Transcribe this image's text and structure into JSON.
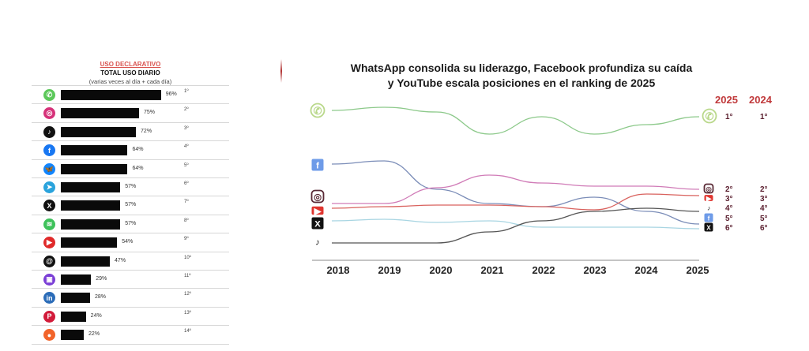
{
  "left_table": {
    "header_tag": "USO DECLARATIVO",
    "title": "TOTAL USO DIARIO",
    "subtitle": "(varias veces al día + cada día)",
    "rows": [
      {
        "platform": "WhatsApp",
        "icon": "whatsapp-icon",
        "color": "#5cc85a",
        "glyph": "✆",
        "value": 96,
        "label": "96%",
        "rank": "1º"
      },
      {
        "platform": "Instagram",
        "icon": "instagram-icon",
        "color": "#d6327a",
        "glyph": "◎",
        "value": 75,
        "label": "75%",
        "rank": "2º"
      },
      {
        "platform": "TikTok",
        "icon": "tiktok-icon",
        "color": "#111111",
        "glyph": "♪",
        "value": 72,
        "label": "72%",
        "rank": "3º"
      },
      {
        "platform": "Facebook",
        "icon": "facebook-icon",
        "color": "#1877f2",
        "glyph": "f",
        "value": 64,
        "label": "64%",
        "rank": "4º"
      },
      {
        "platform": "Bluesky",
        "icon": "bluesky-icon",
        "color": "#1185fe",
        "glyph": "🦋",
        "value": 64,
        "label": "64%",
        "rank": "5º"
      },
      {
        "platform": "Telegram",
        "icon": "telegram-icon",
        "color": "#2aa3dc",
        "glyph": "➤",
        "value": 57,
        "label": "57%",
        "rank": "6º"
      },
      {
        "platform": "X",
        "icon": "x-icon",
        "color": "#111111",
        "glyph": "X",
        "value": 57,
        "label": "57%",
        "rank": "7º"
      },
      {
        "platform": "Spotify",
        "icon": "spotify-icon",
        "color": "#3ec25b",
        "glyph": "≋",
        "value": 57,
        "label": "57%",
        "rank": "8º"
      },
      {
        "platform": "YouTube",
        "icon": "youtube-icon",
        "color": "#e02a2a",
        "glyph": "▶",
        "value": 54,
        "label": "54%",
        "rank": "9º"
      },
      {
        "platform": "Threads",
        "icon": "threads-icon",
        "color": "#111111",
        "glyph": "@",
        "value": 47,
        "label": "47%",
        "rank": "10º"
      },
      {
        "platform": "Twitch",
        "icon": "twitch-icon",
        "color": "#7b3fd6",
        "glyph": "▣",
        "value": 29,
        "label": "29%",
        "rank": "11º"
      },
      {
        "platform": "LinkedIn",
        "icon": "linkedin-icon",
        "color": "#2b6cb8",
        "glyph": "in",
        "value": 28,
        "label": "28%",
        "rank": "12º"
      },
      {
        "platform": "Pinterest",
        "icon": "pinterest-icon",
        "color": "#d21b3a",
        "glyph": "P",
        "value": 24,
        "label": "24%",
        "rank": "13º"
      },
      {
        "platform": "Reddit",
        "icon": "reddit-icon",
        "color": "#f2642a",
        "glyph": "●",
        "value": 22,
        "label": "22%",
        "rank": "14º"
      }
    ]
  },
  "right_title_line1": "WhatsApp consolida su liderazgo, Facebook profundiza su caída",
  "right_title_line2": "y YouTube escala posiciones en el ranking de 2025",
  "rank_headers": [
    "2025",
    "2024"
  ],
  "chart_data": [
    {
      "type": "bar",
      "title": "TOTAL USO DIARIO",
      "subtitle": "(varias veces al día + cada día)",
      "categories": [
        "WhatsApp",
        "Instagram",
        "TikTok",
        "Facebook",
        "Bluesky",
        "Telegram",
        "X",
        "Spotify",
        "YouTube",
        "Threads",
        "Twitch",
        "LinkedIn",
        "Pinterest",
        "Reddit"
      ],
      "values": [
        96,
        75,
        72,
        64,
        64,
        57,
        57,
        57,
        54,
        47,
        29,
        28,
        24,
        22
      ],
      "unit": "%",
      "orientation": "horizontal",
      "xlim": [
        0,
        100
      ]
    },
    {
      "type": "line",
      "title": "WhatsApp consolida su liderazgo, Facebook profundiza su caída y YouTube escala posiciones en el ranking de 2025",
      "x": [
        "2018",
        "2019",
        "2020",
        "2021",
        "2022",
        "2023",
        "2024",
        "2025"
      ],
      "ylabel": "",
      "ylim": [
        0,
        100
      ],
      "note": "Relative ranking level (higher = better position), estimated from curve heights",
      "grid": false,
      "series": [
        {
          "name": "WhatsApp",
          "color": "#8cc98a",
          "values": [
            95,
            97,
            94,
            80,
            91,
            80,
            86,
            91
          ],
          "rank_2025": "1°",
          "rank_2024": "1°"
        },
        {
          "name": "Facebook",
          "color": "#7b8db8",
          "values": [
            61,
            63,
            45,
            36,
            34,
            40,
            31,
            23
          ],
          "rank_2025": "5°",
          "rank_2024": "5°"
        },
        {
          "name": "Instagram",
          "color": "#d07bb7",
          "values": [
            36,
            36,
            46,
            54,
            49,
            47,
            47,
            45
          ],
          "rank_2025": "2°",
          "rank_2024": "2°"
        },
        {
          "name": "YouTube",
          "color": "#d9625e",
          "values": [
            33,
            34,
            35,
            35,
            34,
            32,
            42,
            41
          ],
          "rank_2025": "3°",
          "rank_2024": "3°"
        },
        {
          "name": "X",
          "color": "#a8d5e2",
          "values": [
            25,
            26,
            24,
            25,
            21,
            21,
            21,
            20
          ],
          "rank_2025": "6°",
          "rank_2024": "6°"
        },
        {
          "name": "TikTok",
          "color": "#555555",
          "values": [
            11,
            11,
            11,
            18,
            25,
            31,
            33,
            31
          ],
          "rank_2025": "4°",
          "rank_2024": "4°"
        }
      ]
    }
  ]
}
